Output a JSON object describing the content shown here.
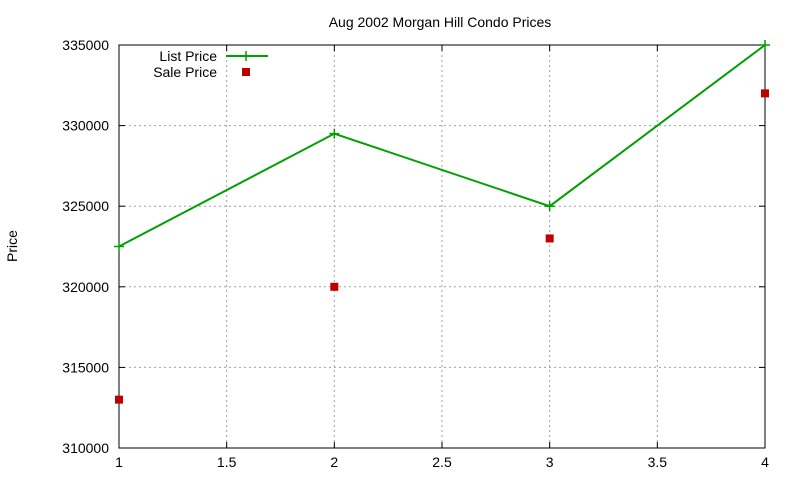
{
  "chart_data": {
    "type": "line",
    "title": "Aug 2002 Morgan Hill Condo Prices",
    "xlabel": "",
    "ylabel": "Price",
    "xlim": [
      1,
      4
    ],
    "ylim": [
      310000,
      335000
    ],
    "xticks": [
      1,
      1.5,
      2,
      2.5,
      3,
      3.5,
      4
    ],
    "yticks": [
      310000,
      315000,
      320000,
      325000,
      330000,
      335000
    ],
    "grid": true,
    "legend_position": "top-left",
    "series": [
      {
        "name": "List Price",
        "style": "linespoints",
        "marker": "plus",
        "color": "#00a000",
        "x": [
          1,
          2,
          3,
          4
        ],
        "y": [
          322500,
          329500,
          325000,
          335000
        ]
      },
      {
        "name": "Sale Price",
        "style": "points",
        "marker": "square",
        "color": "#c00000",
        "x": [
          1,
          2,
          3,
          4
        ],
        "y": [
          313000,
          320000,
          323000,
          332000
        ]
      }
    ]
  }
}
